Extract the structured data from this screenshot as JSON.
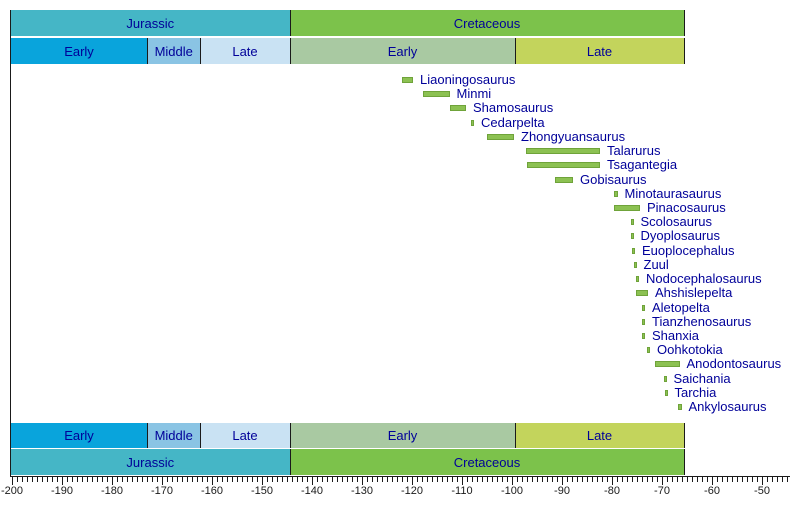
{
  "timeline": {
    "periods": [
      {
        "label": "Jurassic",
        "from": -200.4,
        "to": -144.5,
        "color": "#45b6c6"
      },
      {
        "label": "Cretaceous",
        "from": -144.5,
        "to": -65.5,
        "color": "#7cc24b"
      }
    ],
    "epochs": [
      {
        "label": "Early",
        "from": -200.4,
        "to": -173.0,
        "color": "#09a4dc"
      },
      {
        "label": "Middle",
        "from": -173.0,
        "to": -162.5,
        "color": "#8ac4e4"
      },
      {
        "label": "Late",
        "from": -162.5,
        "to": -144.5,
        "color": "#c9e2f3"
      },
      {
        "label": "Early",
        "from": -144.5,
        "to": -99.5,
        "color": "#a9c9a2"
      },
      {
        "label": "Late",
        "from": -99.5,
        "to": -65.5,
        "color": "#c3d45c"
      }
    ]
  },
  "chart_data": {
    "type": "bar",
    "subtype": "taxon-range-timeline",
    "title": "",
    "xlabel": "",
    "ylabel": "",
    "xlim": [
      -200.4,
      -44.6
    ],
    "grid": false,
    "bar_color": "#8cc152",
    "bar_border_color": "#6fa33a",
    "label_color": "#000099",
    "axis": {
      "minor_step": 1,
      "major_step": 10,
      "first_tick": -200,
      "last_tick": -45,
      "tick_labels": [
        "-200",
        "-190",
        "-180",
        "-170",
        "-160",
        "-150",
        "-140",
        "-130",
        "-120",
        "-110",
        "-100",
        "-90",
        "-80",
        "-70",
        "-60",
        "-50"
      ]
    },
    "taxa": [
      {
        "name": "Liaoningosaurus",
        "from": -122.0,
        "to": -119.8
      },
      {
        "name": "Minmi",
        "from": -117.8,
        "to": -112.5
      },
      {
        "name": "Shamosaurus",
        "from": -112.5,
        "to": -109.2
      },
      {
        "name": "Cedarpelta",
        "from": -108.2,
        "to": -107.6
      },
      {
        "name": "Zhongyuansaurus",
        "from": -105.0,
        "to": -99.6
      },
      {
        "name": "Talarurus",
        "from": -97.2,
        "to": -82.4
      },
      {
        "name": "Tsagantegia",
        "from": -97.0,
        "to": -82.4
      },
      {
        "name": "Gobisaurus",
        "from": -91.4,
        "to": -87.8
      },
      {
        "name": "Minotaurasaurus",
        "from": -79.7,
        "to": -78.9
      },
      {
        "name": "Pinacosaurus",
        "from": -79.6,
        "to": -74.4
      },
      {
        "name": "Scolosaurus",
        "from": -76.3,
        "to": -75.7
      },
      {
        "name": "Dyoplosaurus",
        "from": -76.3,
        "to": -75.7
      },
      {
        "name": "Euoplocephalus",
        "from": -76.1,
        "to": -75.4
      },
      {
        "name": "Zuul",
        "from": -75.7,
        "to": -75.1
      },
      {
        "name": "Nodocephalosaurus",
        "from": -75.3,
        "to": -74.6
      },
      {
        "name": "Ahshislepelta",
        "from": -75.2,
        "to": -72.8
      },
      {
        "name": "Aletopelta",
        "from": -74.1,
        "to": -73.4
      },
      {
        "name": "Tianzhenosaurus",
        "from": -74.1,
        "to": -73.4
      },
      {
        "name": "Shanxia",
        "from": -74.1,
        "to": -73.4
      },
      {
        "name": "Oohkotokia",
        "from": -73.1,
        "to": -72.4
      },
      {
        "name": "Anodontosaurus",
        "from": -71.5,
        "to": -66.5
      },
      {
        "name": "Saichania",
        "from": -69.7,
        "to": -69.1
      },
      {
        "name": "Tarchia",
        "from": -69.5,
        "to": -68.9
      },
      {
        "name": "Ankylosaurus",
        "from": -66.8,
        "to": -66.1
      }
    ]
  }
}
